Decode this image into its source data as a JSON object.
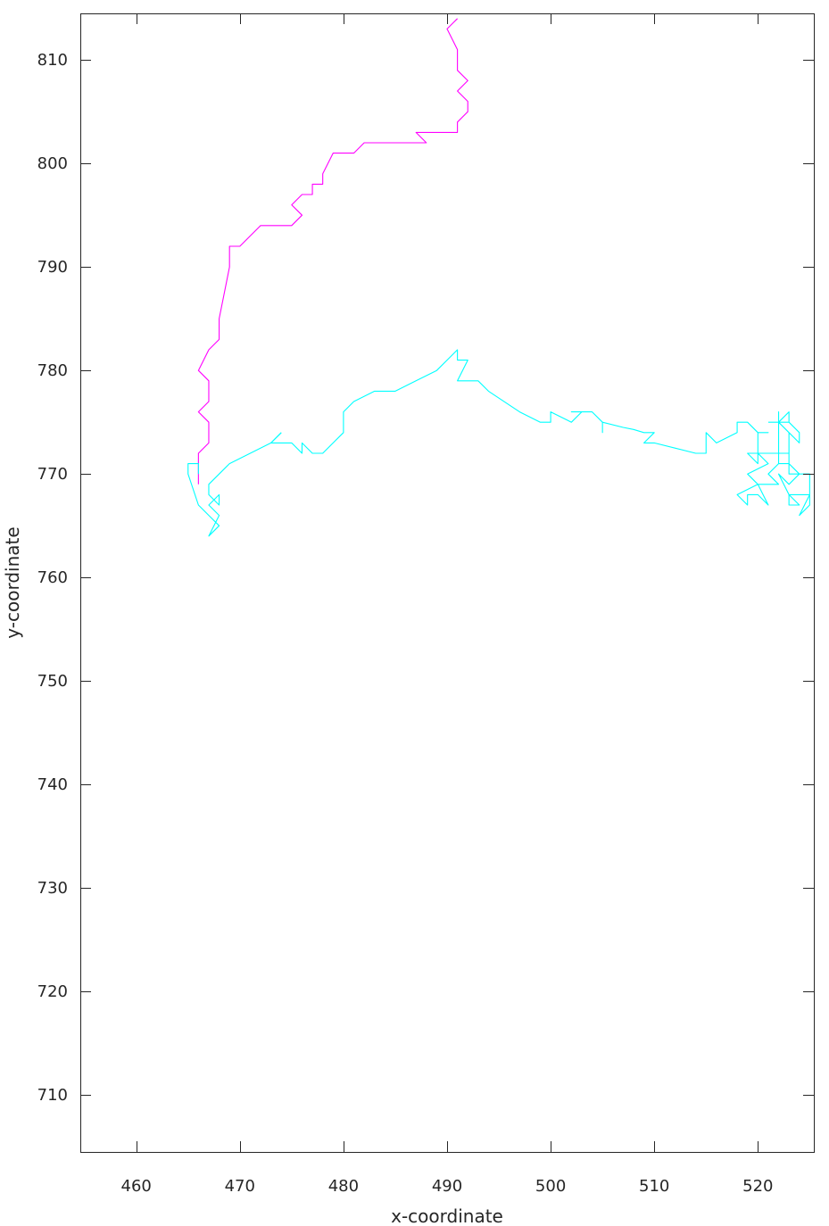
{
  "chart_data": {
    "type": "line",
    "xlabel": "x-coordinate",
    "ylabel": "y-coordinate",
    "xlim": [
      454.6,
      525.4
    ],
    "ylim": [
      704.5,
      814.5
    ],
    "xticks": [
      460,
      470,
      480,
      490,
      500,
      510,
      520
    ],
    "yticks": [
      710,
      720,
      730,
      740,
      750,
      760,
      770,
      780,
      790,
      800,
      810
    ],
    "grid": false,
    "series": [
      {
        "color": "#ff00ff",
        "points": [
          [
            491,
            814
          ],
          [
            490,
            813
          ],
          [
            491,
            811
          ],
          [
            491,
            809
          ],
          [
            492,
            808
          ],
          [
            491,
            807
          ],
          [
            492,
            806
          ],
          [
            492,
            805
          ],
          [
            491,
            804
          ],
          [
            491,
            803
          ],
          [
            489,
            803
          ],
          [
            487,
            803
          ],
          [
            488,
            802
          ],
          [
            486,
            802
          ],
          [
            484,
            802
          ],
          [
            482,
            802
          ],
          [
            481,
            801
          ],
          [
            479,
            801
          ],
          [
            478,
            799
          ],
          [
            478,
            798
          ],
          [
            477,
            798
          ],
          [
            477,
            797
          ],
          [
            476,
            797
          ],
          [
            477,
            797
          ],
          [
            476,
            797
          ],
          [
            475,
            796
          ],
          [
            476,
            795
          ],
          [
            475,
            794
          ],
          [
            474,
            794
          ],
          [
            472,
            794
          ],
          [
            471,
            793
          ],
          [
            470,
            792
          ],
          [
            469,
            792
          ],
          [
            469,
            790
          ],
          [
            468,
            785
          ],
          [
            468,
            783
          ],
          [
            467,
            782
          ],
          [
            466,
            780
          ],
          [
            467,
            779
          ],
          [
            467,
            777
          ],
          [
            466,
            776
          ],
          [
            467,
            775
          ],
          [
            467,
            773
          ],
          [
            466,
            772
          ],
          [
            466,
            770
          ],
          [
            466,
            769
          ]
        ]
      },
      {
        "color": "#00ffff",
        "points": [
          [
            474,
            774
          ],
          [
            473,
            773
          ],
          [
            474,
            773
          ],
          [
            475,
            773
          ],
          [
            476,
            772
          ],
          [
            476,
            773
          ],
          [
            477,
            772
          ],
          [
            478,
            772
          ],
          [
            479,
            773
          ],
          [
            480,
            774
          ],
          [
            480,
            776
          ],
          [
            481,
            777
          ],
          [
            483,
            778
          ],
          [
            485,
            778
          ],
          [
            487,
            779
          ],
          [
            489,
            780
          ],
          [
            490,
            781
          ],
          [
            491,
            782
          ],
          [
            491,
            781
          ],
          [
            492,
            781
          ],
          [
            491,
            779
          ],
          [
            492,
            779
          ],
          [
            493,
            779
          ],
          [
            494,
            778
          ],
          [
            497,
            776
          ],
          [
            499,
            775
          ],
          [
            500,
            775
          ],
          [
            500,
            776
          ],
          [
            502,
            775
          ],
          [
            503,
            776
          ],
          [
            502,
            776
          ],
          [
            504,
            776
          ],
          [
            505,
            775
          ],
          [
            505,
            774
          ],
          [
            505,
            775
          ],
          [
            507,
            774.5
          ],
          [
            508,
            774.3
          ],
          [
            509,
            774
          ],
          [
            510,
            774
          ],
          [
            509,
            773
          ],
          [
            510,
            773
          ],
          [
            512,
            772.5
          ],
          [
            514,
            772
          ],
          [
            515,
            772
          ],
          [
            515,
            774
          ],
          [
            516,
            773
          ],
          [
            518,
            774
          ],
          [
            518,
            775
          ],
          [
            519,
            775
          ],
          [
            520,
            774
          ],
          [
            521,
            774
          ],
          [
            520,
            774
          ],
          [
            520,
            771
          ],
          [
            519,
            772
          ],
          [
            520,
            772
          ],
          [
            521,
            771
          ],
          [
            519,
            770
          ],
          [
            520,
            769
          ],
          [
            518,
            768
          ],
          [
            519,
            767
          ],
          [
            519,
            768
          ],
          [
            520,
            768
          ],
          [
            521,
            767
          ],
          [
            520,
            769
          ],
          [
            522,
            769
          ],
          [
            521,
            770
          ],
          [
            522,
            771
          ],
          [
            522,
            772
          ],
          [
            521,
            772
          ],
          [
            520,
            772
          ],
          [
            521,
            772
          ],
          [
            523,
            772
          ],
          [
            523,
            770
          ],
          [
            523,
            771
          ],
          [
            524,
            770
          ],
          [
            523,
            769
          ],
          [
            522,
            770
          ],
          [
            523,
            768
          ],
          [
            523,
            767
          ],
          [
            524,
            767
          ],
          [
            523,
            768
          ],
          [
            525,
            768
          ],
          [
            524,
            766
          ],
          [
            525,
            767
          ],
          [
            525,
            768
          ],
          [
            525,
            770
          ],
          [
            524,
            770
          ],
          [
            523,
            770
          ],
          [
            523,
            774
          ],
          [
            522,
            775
          ],
          [
            523,
            776
          ],
          [
            523,
            775
          ],
          [
            522,
            775
          ],
          [
            523,
            775
          ],
          [
            524,
            774
          ],
          [
            524,
            773
          ],
          [
            523,
            774
          ],
          [
            523,
            772
          ],
          [
            523,
            771
          ],
          [
            522,
            771
          ],
          [
            522,
            774
          ],
          [
            522,
            776
          ],
          [
            522,
            775
          ],
          [
            521,
            775
          ]
        ]
      },
      {
        "color": "#00ffff",
        "points": [
          [
            474,
            774
          ],
          [
            473,
            773
          ],
          [
            469,
            771
          ],
          [
            467,
            769
          ],
          [
            467,
            768
          ],
          [
            468,
            767
          ],
          [
            468,
            768
          ],
          [
            467,
            767
          ],
          [
            468,
            766
          ],
          [
            467,
            764
          ],
          [
            468,
            765
          ],
          [
            467,
            766
          ],
          [
            466,
            767
          ],
          [
            465,
            770
          ],
          [
            465,
            771
          ],
          [
            466,
            771
          ],
          [
            466,
            770
          ]
        ]
      }
    ]
  }
}
